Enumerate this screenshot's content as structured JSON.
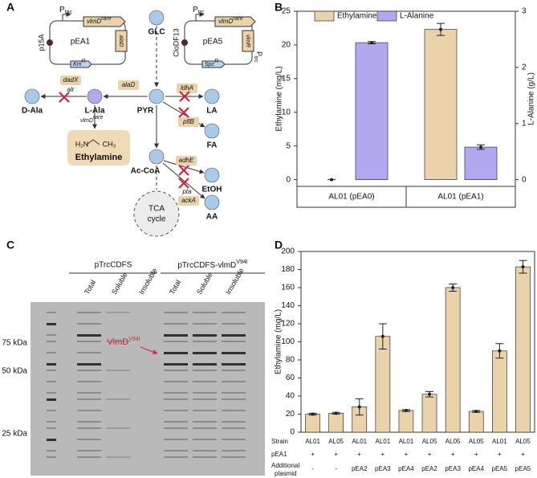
{
  "panel_labels": [
    "A",
    "B",
    "C",
    "D"
  ],
  "pathway": {
    "plasmid1": {
      "name": "pEA1",
      "origin": "p15A",
      "promoter": {
        "text": "P",
        "sub": "tac"
      },
      "gene": {
        "text": "vlmD",
        "sup": "rare"
      },
      "gene2": "alaD",
      "marker": {
        "text": "Km",
        "sup": "R"
      }
    },
    "plasmid2": {
      "name": "pEA5",
      "origin": "CloDF13",
      "promoter": {
        "text": "P",
        "sub": "trc"
      },
      "promoter2": {
        "text": "P",
        "sub": "trc"
      },
      "gene": {
        "text": "vlmD",
        "sup": "rare"
      },
      "gene2": "vlmR",
      "marker": {
        "text": "Spc",
        "sup": "R"
      }
    },
    "metabolites": [
      "GLC",
      "PYR",
      "LA",
      "FA",
      "Ac-CoA",
      "EtOH",
      "AA",
      "L-Ala",
      "D-Ala"
    ],
    "enzymes": [
      "dadX",
      "alr",
      "alaD",
      "ldhA",
      "pflB",
      "adhE",
      "pta",
      "ackA"
    ],
    "ethylamine_enzyme": {
      "text": "vlmD",
      "sup": "rare"
    },
    "product": {
      "left": "H₂N",
      "right": "CH₃",
      "name": "Ethylamine"
    },
    "tca": [
      "TCA",
      "cycle"
    ]
  },
  "gel": {
    "groups": [
      "pTrcCDFS",
      {
        "text": "pTrcCDFS-vlmD",
        "sup": "V94I"
      }
    ],
    "lanes": [
      "Total",
      "Soluble",
      "Insoluble",
      "Total",
      "Soluble",
      "Insoluble"
    ],
    "markers": [
      "75 kDa",
      "50 kDa",
      "25 kDa"
    ],
    "annotation": {
      "text": "VlmD",
      "sup": "V94I"
    }
  },
  "chart_data": [
    {
      "type": "bar",
      "categories": [
        "AL01 (pEA0)",
        "AL01 (pEA1)"
      ],
      "ylabel": "Ethylamine (mg/L)",
      "y2label": "L-Alanine (g/L)",
      "ylim": [
        -1,
        25
      ],
      "yticks": [
        0,
        5,
        10,
        15,
        20,
        25
      ],
      "y2lim": [
        -0.12,
        3
      ],
      "y2ticks": [
        0,
        1,
        2,
        3
      ],
      "legend": "top-left",
      "series": [
        {
          "name": "Ethylamine",
          "color": "#ead2aa",
          "values": [
            0,
            22.3
          ],
          "errors": [
            0,
            0.9
          ]
        },
        {
          "name": "L-Alanine",
          "color": "#b1a9f0",
          "axis": "y2",
          "values": [
            2.44,
            0.58
          ],
          "errors": [
            0.02,
            0.04
          ]
        }
      ]
    },
    {
      "type": "bar",
      "ylabel": "Ethylamine (mg/L)",
      "categories": [
        "AL01",
        "AL05",
        "AL01",
        "AL01",
        "AL01",
        "AL05",
        "AL05",
        "AL05",
        "AL01",
        "AL05"
      ],
      "row_labels": [
        "Strain",
        "pEA1",
        [
          "Additional",
          "plasmid"
        ]
      ],
      "pEA1": [
        "+",
        "+",
        "+",
        "+",
        "+",
        "+",
        "+",
        "+",
        "+",
        "+"
      ],
      "additional_plasmid": [
        "-",
        "-",
        "pEA2",
        "pEA3",
        "pEA4",
        "pEA2",
        "pEA3",
        "pEA4",
        "pEA5",
        "pEA5"
      ],
      "ylim": [
        0,
        200
      ],
      "yticks": [
        0,
        20,
        40,
        60,
        80,
        100,
        120,
        140,
        160,
        180,
        200
      ],
      "color": "#ead2aa",
      "values": [
        20,
        21,
        28,
        106,
        24,
        42,
        160,
        23,
        90,
        183
      ],
      "errors": [
        1,
        1,
        9,
        14,
        1,
        3,
        4,
        1,
        8,
        7
      ]
    }
  ]
}
